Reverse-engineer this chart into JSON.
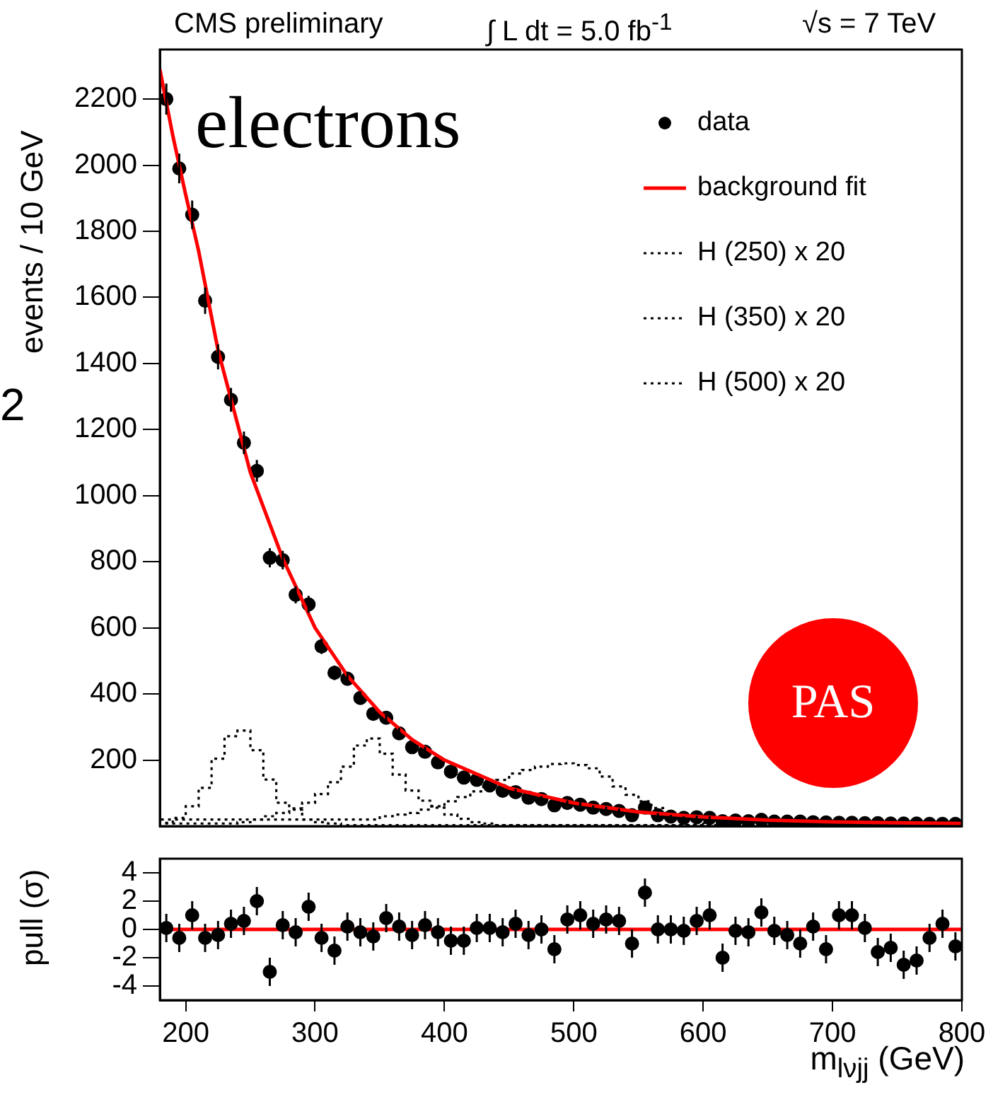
{
  "chart_data": [
    {
      "type": "scatter",
      "title": "CMS preliminary",
      "ylabel": "events / 10 GeV",
      "annotations": [
        "∫ L dt = 5.0 fb$^{-1}$",
        "√s = 7 TeV",
        "electrons",
        "PAS",
        "2"
      ],
      "xlim": [
        180,
        800
      ],
      "ylim": [
        0,
        2350
      ],
      "yticks": [
        200,
        400,
        600,
        800,
        1000,
        1200,
        1400,
        1600,
        1800,
        2000,
        2200
      ],
      "tick_labels": "y",
      "legend": "top right",
      "series": [
        {
          "name": "data",
          "type": "scatter",
          "color": "#000000",
          "marker": "circle",
          "x": [
            185,
            195,
            205,
            215,
            225,
            235,
            245,
            255,
            265,
            275,
            285,
            295,
            305,
            315,
            325,
            335,
            345,
            355,
            365,
            375,
            385,
            395,
            405,
            415,
            425,
            435,
            445,
            455,
            465,
            475,
            485,
            495,
            505,
            515,
            525,
            535,
            545,
            555,
            565,
            575,
            585,
            595,
            605,
            615,
            625,
            635,
            645,
            655,
            665,
            675,
            685,
            695,
            705,
            715,
            725,
            735,
            745,
            755,
            765,
            775,
            785,
            795
          ],
          "values": [
            2200,
            1990,
            1850,
            1590,
            1420,
            1290,
            1160,
            1075,
            812,
            805,
            700,
            671,
            544,
            464,
            446,
            388,
            340,
            328,
            281,
            239,
            225,
            193,
            165,
            147,
            140,
            123,
            107,
            103,
            86,
            82,
            63,
            70,
            65,
            56,
            52,
            46,
            33,
            56,
            33,
            29,
            25,
            27,
            25,
            15,
            17,
            15,
            19,
            14,
            14,
            14,
            12,
            11,
            10,
            10,
            9,
            9,
            8,
            8,
            8,
            7,
            7,
            7
          ],
          "errors": [
            47,
            45,
            43,
            40,
            38,
            36,
            34,
            33,
            29,
            28,
            26,
            26,
            23,
            22,
            21,
            20,
            18,
            18,
            17,
            15,
            15,
            14,
            13,
            12,
            12,
            11,
            10,
            10,
            9,
            9,
            8,
            8,
            8,
            7,
            7,
            7,
            6,
            7,
            6,
            5,
            5,
            5,
            5,
            null,
            null,
            null,
            null,
            null,
            null,
            null,
            null,
            null,
            null,
            null,
            null,
            null,
            null,
            null,
            null,
            null,
            null,
            null
          ]
        },
        {
          "name": "background fit",
          "type": "line",
          "color": "#ff0000",
          "x": [
            180,
            190,
            200,
            210,
            225,
            250,
            275,
            300,
            325,
            350,
            375,
            400,
            450,
            500,
            550,
            600,
            650,
            700,
            750,
            800
          ],
          "values": [
            2290,
            2090,
            1910,
            1740,
            1440,
            1070,
            810,
            600,
            455,
            345,
            262,
            200,
            115,
            70,
            43,
            28,
            18,
            13,
            10,
            8
          ]
        },
        {
          "name": "H (250) x 20",
          "type": "step",
          "color": "#000000",
          "line_style": "dotted",
          "x": [
            180,
            190,
            200,
            210,
            220,
            230,
            240,
            250,
            260,
            270,
            280,
            290,
            300,
            310,
            320,
            330,
            800
          ],
          "values": [
            5,
            10,
            25,
            60,
            116,
            204,
            272,
            289,
            230,
            141,
            71,
            54,
            20,
            12,
            8,
            3,
            3
          ]
        },
        {
          "name": "H (350) x 20",
          "type": "step",
          "color": "#000000",
          "line_style": "dotted",
          "x": [
            180,
            240,
            250,
            260,
            270,
            280,
            290,
            300,
            310,
            320,
            330,
            340,
            350,
            360,
            370,
            380,
            390,
            400,
            410,
            420,
            430,
            440,
            450,
            800
          ],
          "values": [
            3,
            8,
            12,
            20,
            30,
            40,
            50,
            71,
            97,
            133,
            180,
            244,
            265,
            219,
            156,
            108,
            77,
            56,
            35,
            22,
            12,
            8,
            3,
            3
          ]
        },
        {
          "name": "H (500) x 20",
          "type": "step",
          "color": "#000000",
          "line_style": "dotted",
          "x": [
            180,
            350,
            360,
            370,
            380,
            390,
            400,
            410,
            420,
            430,
            440,
            450,
            460,
            470,
            480,
            490,
            500,
            510,
            520,
            530,
            540,
            550,
            560,
            570,
            580,
            590,
            600,
            610,
            620,
            630,
            800
          ],
          "values": [
            2,
            20,
            30,
            35,
            40,
            50,
            60,
            75,
            88,
            105,
            123,
            140,
            159,
            170,
            180,
            188,
            190,
            185,
            175,
            150,
            120,
            95,
            75,
            55,
            40,
            27,
            16,
            10,
            6,
            3,
            3
          ]
        }
      ]
    },
    {
      "type": "scatter",
      "ylabel": "pull (σ)",
      "xlabel": "m$_{lνjj}$ (GeV)",
      "xlim": [
        180,
        800
      ],
      "xticks": [
        200,
        300,
        400,
        500,
        600,
        700,
        800
      ],
      "ylim": [
        -5,
        5
      ],
      "yticks": [
        -4,
        -2,
        0,
        2,
        4
      ],
      "ref_lines": [
        {
          "axis": "y",
          "value": 0,
          "color": "#ff0000"
        }
      ],
      "series": [
        {
          "type": "scatter",
          "color": "#000000",
          "marker": "circle",
          "x": [
            185,
            195,
            205,
            215,
            225,
            235,
            245,
            255,
            265,
            275,
            285,
            295,
            305,
            315,
            325,
            335,
            345,
            355,
            365,
            375,
            385,
            395,
            405,
            415,
            425,
            435,
            445,
            455,
            465,
            475,
            485,
            495,
            505,
            515,
            525,
            535,
            545,
            555,
            565,
            575,
            585,
            595,
            605,
            615,
            625,
            635,
            645,
            655,
            665,
            675,
            685,
            695,
            705,
            715,
            725,
            735,
            745,
            755,
            765,
            775,
            785,
            795
          ],
          "values": [
            0.1,
            -0.6,
            1.0,
            -0.6,
            -0.4,
            0.4,
            0.6,
            2.0,
            -3.0,
            0.3,
            -0.2,
            1.6,
            -0.6,
            -1.5,
            0.2,
            -0.2,
            -0.5,
            0.8,
            0.2,
            -0.4,
            0.3,
            -0.2,
            -0.8,
            -0.8,
            0.1,
            0.1,
            -0.2,
            0.4,
            -0.4,
            0,
            -1.4,
            0.7,
            1.0,
            0.4,
            0.7,
            0.6,
            -1.0,
            2.6,
            0,
            0,
            -0.1,
            0.6,
            1.0,
            -2.0,
            -0.1,
            -0.2,
            1.2,
            -0.1,
            -0.4,
            -1.0,
            0.2,
            -1.4,
            1.0,
            1.0,
            0.1,
            -1.6,
            -1.3,
            -2.5,
            -2.2,
            -0.6,
            0.4,
            -1.2
          ],
          "errors": [
            1,
            1,
            1,
            1,
            1,
            1,
            1,
            1,
            1,
            1,
            1,
            1,
            1,
            1,
            1,
            1,
            1,
            1,
            1,
            1,
            1,
            1,
            1,
            1,
            1,
            1,
            1,
            1,
            1,
            1,
            1,
            1,
            1,
            1,
            1,
            1,
            1,
            1,
            1,
            1,
            1,
            1,
            1,
            1,
            1,
            1,
            1,
            1,
            1,
            1,
            1,
            1,
            1,
            1,
            1,
            1,
            1,
            1,
            1,
            1,
            1,
            1
          ]
        }
      ]
    }
  ]
}
